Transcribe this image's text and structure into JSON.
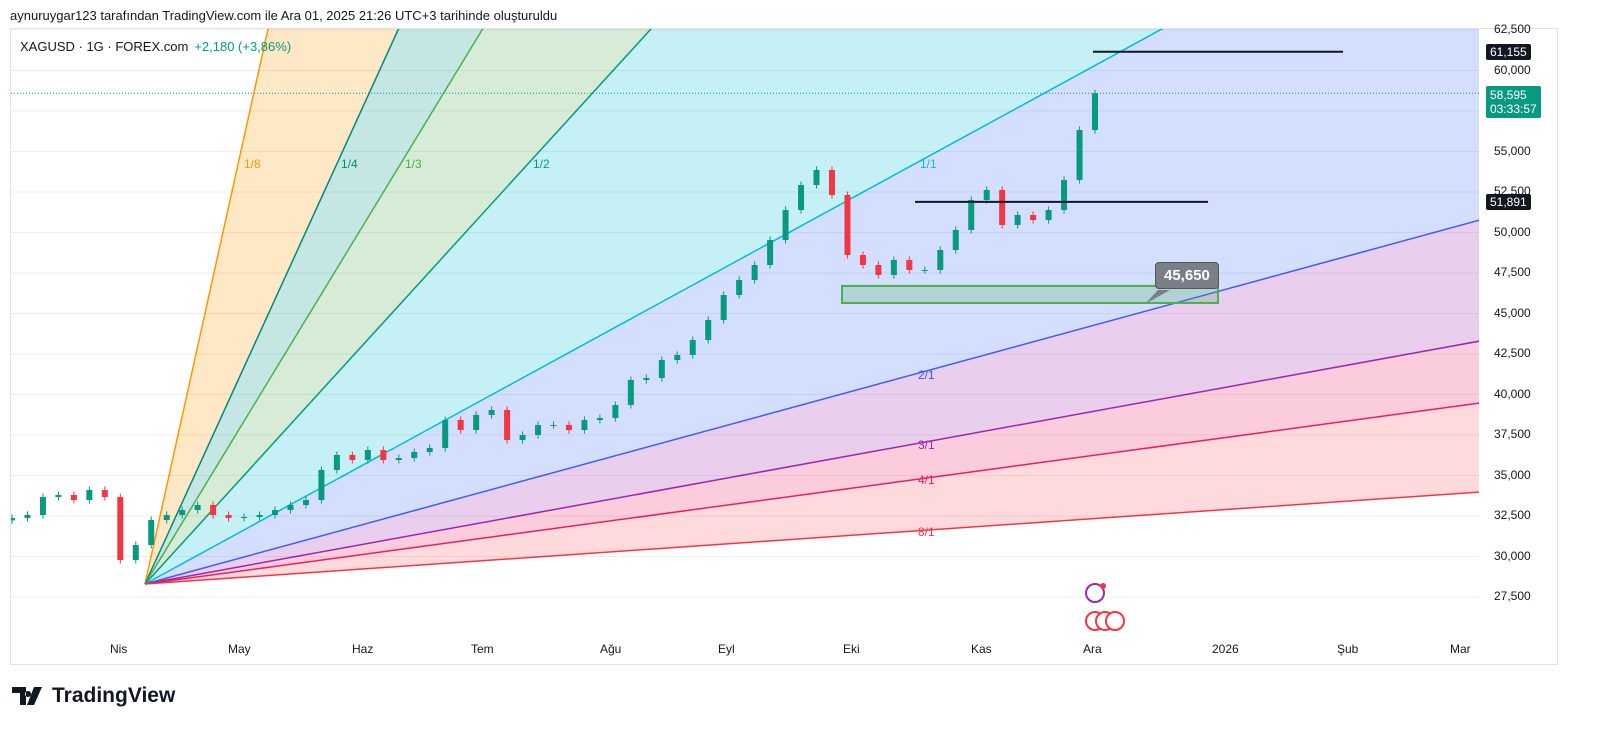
{
  "caption": "aynuruygar123 tarafından TradingView.com ile Ara 01, 2025 21:26 UTC+3 tarihinde oluşturuldu",
  "legend": {
    "symbol": "XAGUSD · 1G · FOREX.com",
    "change": "+2,180 (+3,86%)"
  },
  "price_axis": [
    "62,500",
    "60,000",
    "55,000",
    "52,500",
    "50,000",
    "47,500",
    "45,000",
    "42,500",
    "40,000",
    "37,500",
    "35,000",
    "32,500",
    "30,000",
    "27,500"
  ],
  "time_axis": [
    "Nis",
    "May",
    "Haz",
    "Tem",
    "Ağu",
    "Eyl",
    "Eki",
    "Kas",
    "Ara",
    "2026",
    "Şub",
    "Mar"
  ],
  "tags": {
    "top": "61,155",
    "mid": "51,891",
    "last_price": "58,595",
    "countdown": "03:33:57",
    "callout": "45,650"
  },
  "fan_labels": [
    "1/8",
    "1/4",
    "1/3",
    "1/2",
    "1/1",
    "2/1",
    "3/1",
    "4/1",
    "8/1"
  ],
  "colors": {
    "up": "#089981",
    "down": "#f23645"
  },
  "brand": "TradingView",
  "chart_data": {
    "type": "candlestick",
    "symbol": "XAGUSD",
    "interval": "1D",
    "closes": [
      32377,
      32562,
      33673,
      33796,
      33488,
      34105,
      33673,
      29784,
      30710,
      32253,
      32562,
      32871,
      33179,
      32562,
      32377,
      32438,
      32562,
      32871,
      33179,
      33488,
      35340,
      36266,
      35957,
      36574,
      35957,
      36080,
      36451,
      36698,
      38426,
      37809,
      38735,
      39044,
      37192,
      37500,
      38118,
      38118,
      37809,
      38426,
      38550,
      39352,
      40895,
      41019,
      42130,
      42439,
      43364,
      44599,
      46142,
      47068,
      47994,
      49537,
      51389,
      52932,
      53858,
      52315,
      48611,
      47994,
      47377,
      48303,
      47686,
      47686,
      48920,
      50155,
      52007,
      52624,
      50464,
      51081,
      50772,
      51389,
      53241,
      56327,
      58595
    ],
    "ylim": [
      27500,
      62500
    ],
    "horizontal_lines": [
      61155,
      51891
    ],
    "zone": [
      45650,
      46700
    ]
  }
}
